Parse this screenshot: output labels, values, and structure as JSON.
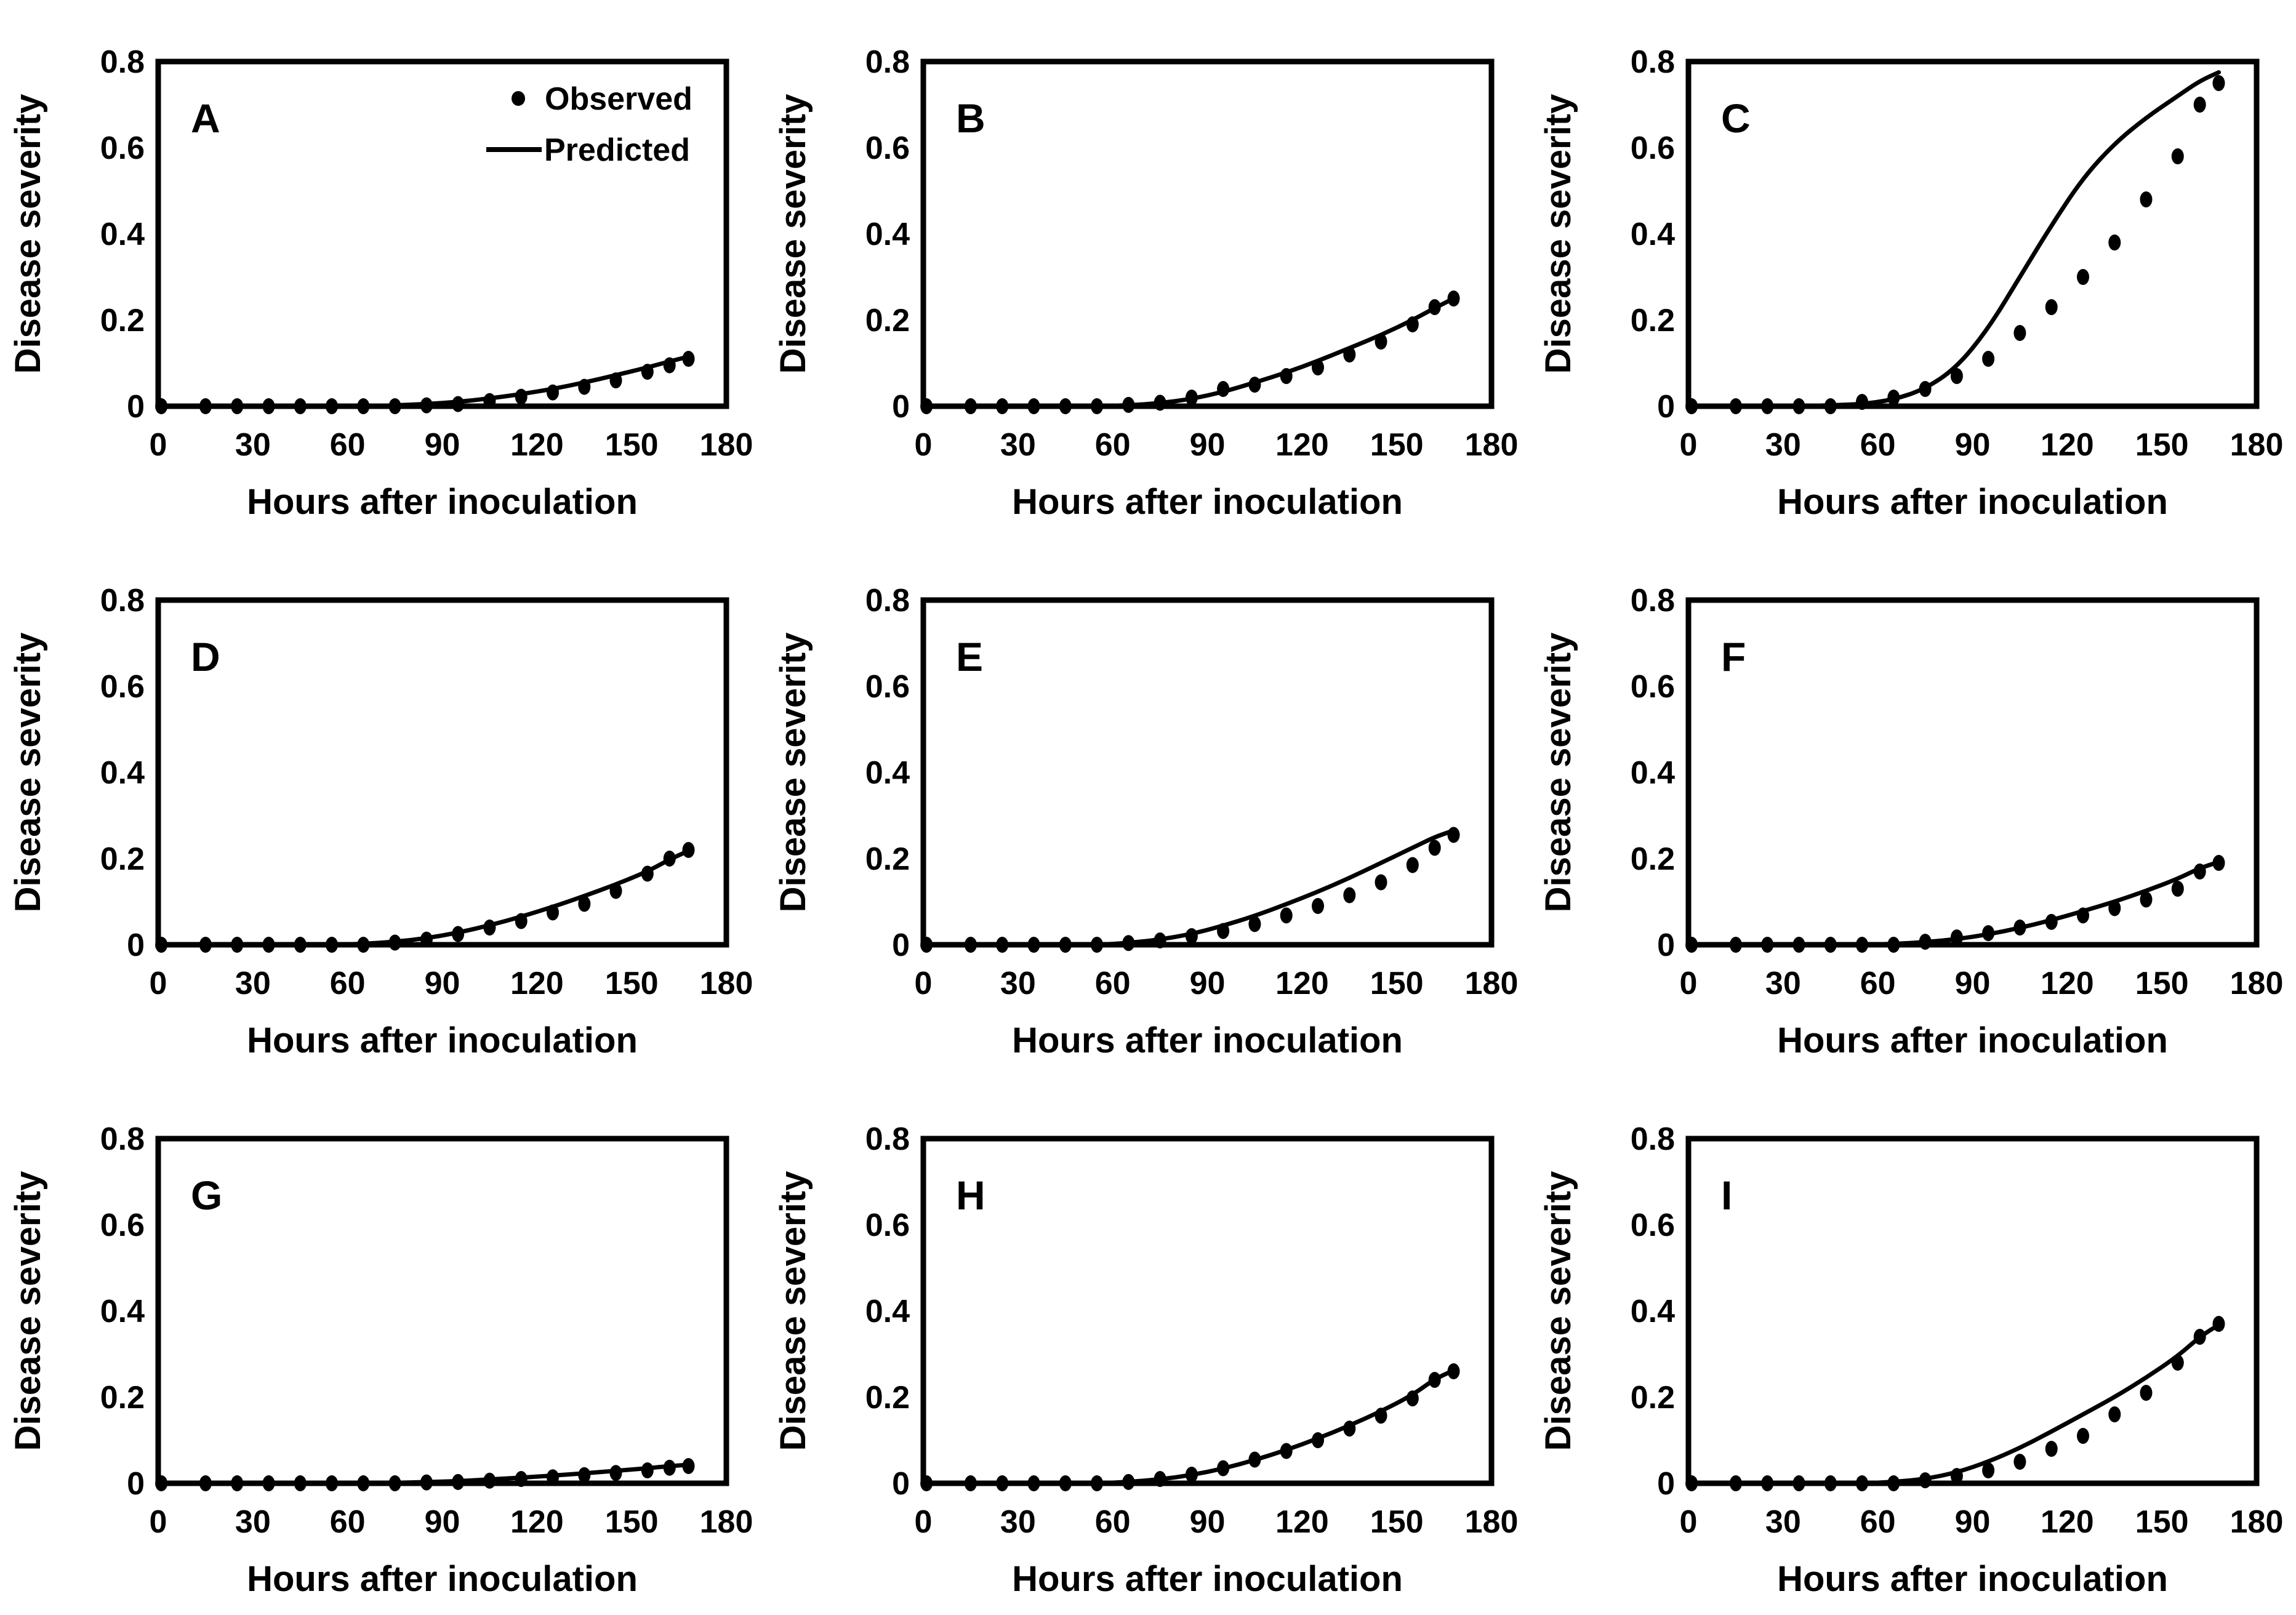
{
  "figure": {
    "background": "#ffffff",
    "foreground": "#000000",
    "ylabel": "Disease severity",
    "xlabel": "Hours after inoculation",
    "legend": {
      "observed_label": "Observed",
      "predicted_label": "Predicted",
      "position": "top-right-of-panel-A"
    },
    "axis": {
      "xlim": [
        0,
        180
      ],
      "ylim": [
        0,
        0.8
      ],
      "xticks": [
        0,
        30,
        60,
        90,
        120,
        150,
        180
      ],
      "yticks": [
        0,
        0.2,
        0.4,
        0.6,
        0.8
      ],
      "grid": false
    }
  },
  "chart_data": [
    {
      "type": "scatter",
      "panel": "A",
      "legend": true,
      "x": [
        1,
        15,
        25,
        35,
        45,
        55,
        65,
        75,
        85,
        95,
        105,
        115,
        125,
        135,
        145,
        155,
        162,
        168
      ],
      "series": [
        {
          "name": "Observed",
          "style": "points",
          "values": [
            0,
            0,
            0,
            0,
            0,
            0,
            0,
            0,
            0.002,
            0.005,
            0.012,
            0.022,
            0.032,
            0.045,
            0.06,
            0.08,
            0.095,
            0.11
          ]
        },
        {
          "name": "Predicted",
          "style": "line",
          "values": [
            0,
            0,
            0,
            0,
            0,
            0,
            0,
            0.002,
            0.005,
            0.01,
            0.018,
            0.028,
            0.04,
            0.055,
            0.072,
            0.09,
            0.104,
            0.115
          ]
        }
      ]
    },
    {
      "type": "scatter",
      "panel": "B",
      "legend": false,
      "x": [
        1,
        15,
        25,
        35,
        45,
        55,
        65,
        75,
        85,
        95,
        105,
        115,
        125,
        135,
        145,
        155,
        162,
        168
      ],
      "series": [
        {
          "name": "Observed",
          "style": "points",
          "values": [
            0,
            0,
            0,
            0,
            0,
            0,
            0.003,
            0.008,
            0.02,
            0.04,
            0.05,
            0.07,
            0.09,
            0.12,
            0.15,
            0.19,
            0.23,
            0.25
          ]
        },
        {
          "name": "Predicted",
          "style": "line",
          "values": [
            0,
            0,
            0,
            0,
            0,
            0,
            0.002,
            0.007,
            0.017,
            0.033,
            0.055,
            0.078,
            0.105,
            0.135,
            0.165,
            0.2,
            0.228,
            0.25
          ]
        }
      ]
    },
    {
      "type": "scatter",
      "panel": "C",
      "legend": false,
      "x": [
        1,
        15,
        25,
        35,
        45,
        55,
        65,
        75,
        85,
        95,
        105,
        115,
        125,
        135,
        145,
        155,
        162,
        168
      ],
      "series": [
        {
          "name": "Observed",
          "style": "points",
          "values": [
            0,
            0,
            0,
            0,
            0,
            0.01,
            0.02,
            0.04,
            0.07,
            0.11,
            0.17,
            0.23,
            0.3,
            0.38,
            0.48,
            0.58,
            0.7,
            0.75
          ]
        },
        {
          "name": "Predicted",
          "style": "line",
          "values": [
            0,
            0,
            0,
            0,
            0.002,
            0.005,
            0.015,
            0.04,
            0.09,
            0.18,
            0.3,
            0.42,
            0.53,
            0.61,
            0.67,
            0.72,
            0.755,
            0.775
          ]
        }
      ]
    },
    {
      "type": "scatter",
      "panel": "D",
      "legend": false,
      "x": [
        1,
        15,
        25,
        35,
        45,
        55,
        65,
        75,
        85,
        95,
        105,
        115,
        125,
        135,
        145,
        155,
        162,
        168
      ],
      "series": [
        {
          "name": "Observed",
          "style": "points",
          "values": [
            0,
            0,
            0,
            0,
            0,
            0,
            0,
            0.005,
            0.012,
            0.025,
            0.04,
            0.055,
            0.075,
            0.095,
            0.125,
            0.165,
            0.2,
            0.22
          ]
        },
        {
          "name": "Predicted",
          "style": "line",
          "values": [
            0,
            0,
            0,
            0,
            0,
            0,
            0.002,
            0.007,
            0.015,
            0.028,
            0.045,
            0.065,
            0.088,
            0.113,
            0.14,
            0.17,
            0.198,
            0.218
          ]
        }
      ]
    },
    {
      "type": "scatter",
      "panel": "E",
      "legend": false,
      "x": [
        1,
        15,
        25,
        35,
        45,
        55,
        65,
        75,
        85,
        95,
        105,
        115,
        125,
        135,
        145,
        155,
        162,
        168
      ],
      "series": [
        {
          "name": "Observed",
          "style": "points",
          "values": [
            0,
            0,
            0,
            0,
            0,
            0,
            0.004,
            0.01,
            0.02,
            0.032,
            0.048,
            0.068,
            0.09,
            0.115,
            0.145,
            0.185,
            0.225,
            0.255
          ]
        },
        {
          "name": "Predicted",
          "style": "line",
          "values": [
            0,
            0,
            0,
            0,
            0,
            0,
            0.004,
            0.012,
            0.025,
            0.044,
            0.067,
            0.094,
            0.123,
            0.155,
            0.19,
            0.225,
            0.25,
            0.265
          ]
        }
      ]
    },
    {
      "type": "scatter",
      "panel": "F",
      "legend": false,
      "x": [
        1,
        15,
        25,
        35,
        45,
        55,
        65,
        75,
        85,
        95,
        105,
        115,
        125,
        135,
        145,
        155,
        162,
        168
      ],
      "series": [
        {
          "name": "Observed",
          "style": "points",
          "values": [
            0,
            0,
            0,
            0,
            0,
            0,
            0,
            0.007,
            0.017,
            0.027,
            0.04,
            0.053,
            0.068,
            0.085,
            0.105,
            0.13,
            0.17,
            0.19
          ]
        },
        {
          "name": "Predicted",
          "style": "line",
          "values": [
            0,
            0,
            0,
            0,
            0,
            0,
            0.002,
            0.006,
            0.013,
            0.024,
            0.039,
            0.057,
            0.078,
            0.1,
            0.125,
            0.153,
            0.178,
            0.192
          ]
        }
      ]
    },
    {
      "type": "scatter",
      "panel": "G",
      "legend": false,
      "x": [
        1,
        15,
        25,
        35,
        45,
        55,
        65,
        75,
        85,
        95,
        105,
        115,
        125,
        135,
        145,
        155,
        162,
        168
      ],
      "series": [
        {
          "name": "Observed",
          "style": "points",
          "values": [
            0,
            0,
            0,
            0,
            0,
            0,
            0,
            0,
            0.002,
            0.003,
            0.006,
            0.01,
            0.014,
            0.019,
            0.024,
            0.03,
            0.036,
            0.04
          ]
        },
        {
          "name": "Predicted",
          "style": "line",
          "values": [
            0,
            0,
            0,
            0,
            0,
            0,
            0,
            0.001,
            0.003,
            0.005,
            0.009,
            0.013,
            0.018,
            0.023,
            0.029,
            0.035,
            0.04,
            0.043
          ]
        }
      ]
    },
    {
      "type": "scatter",
      "panel": "H",
      "legend": false,
      "x": [
        1,
        15,
        25,
        35,
        45,
        55,
        65,
        75,
        85,
        95,
        105,
        115,
        125,
        135,
        145,
        155,
        162,
        168
      ],
      "series": [
        {
          "name": "Observed",
          "style": "points",
          "values": [
            0,
            0,
            0,
            0,
            0,
            0,
            0.003,
            0.01,
            0.02,
            0.035,
            0.055,
            0.075,
            0.1,
            0.127,
            0.157,
            0.197,
            0.24,
            0.26
          ]
        },
        {
          "name": "Predicted",
          "style": "line",
          "values": [
            0,
            0,
            0,
            0,
            0,
            0,
            0.003,
            0.009,
            0.019,
            0.034,
            0.054,
            0.077,
            0.104,
            0.134,
            0.167,
            0.205,
            0.242,
            0.262
          ]
        }
      ]
    },
    {
      "type": "scatter",
      "panel": "I",
      "legend": false,
      "x": [
        1,
        15,
        25,
        35,
        45,
        55,
        65,
        75,
        85,
        95,
        105,
        115,
        125,
        135,
        145,
        155,
        162,
        168
      ],
      "series": [
        {
          "name": "Observed",
          "style": "points",
          "values": [
            0,
            0,
            0,
            0,
            0,
            0,
            0,
            0.007,
            0.017,
            0.03,
            0.05,
            0.08,
            0.11,
            0.16,
            0.21,
            0.28,
            0.34,
            0.37
          ]
        },
        {
          "name": "Predicted",
          "style": "line",
          "values": [
            0,
            0,
            0,
            0,
            0,
            0,
            0.003,
            0.01,
            0.025,
            0.05,
            0.082,
            0.12,
            0.16,
            0.2,
            0.245,
            0.295,
            0.34,
            0.368
          ]
        }
      ]
    }
  ]
}
